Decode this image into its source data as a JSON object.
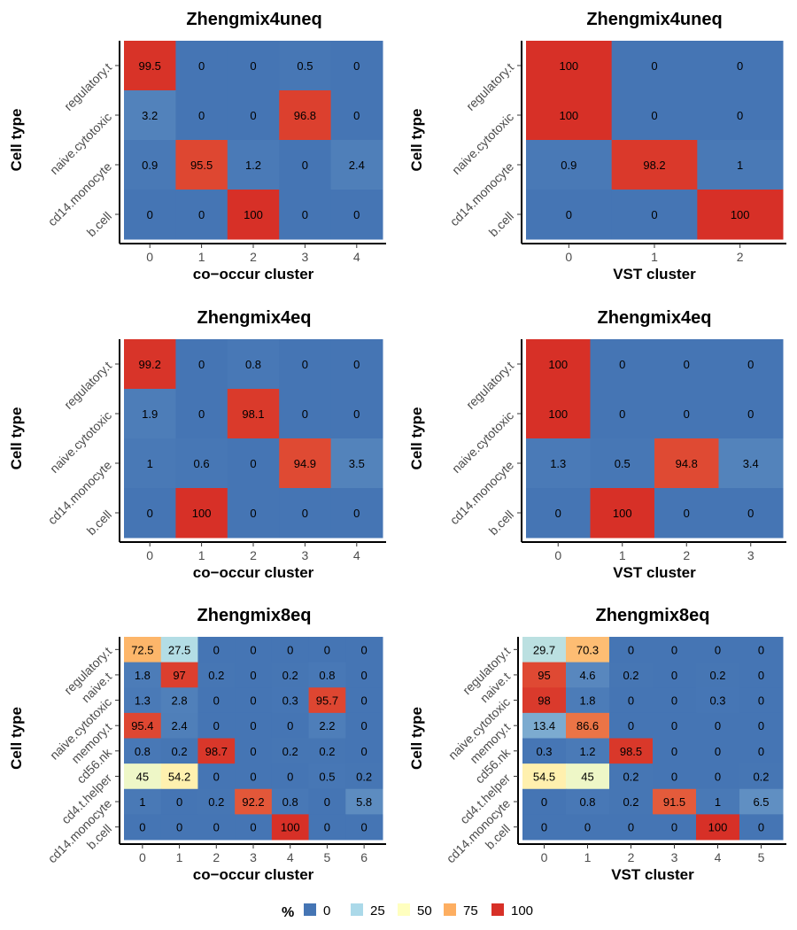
{
  "legend": {
    "title": "%",
    "items": [
      {
        "label": "0",
        "color": "#4575b4"
      },
      {
        "label": "25",
        "color": "#abd9e9"
      },
      {
        "label": "50",
        "color": "#ffffbf"
      },
      {
        "label": "75",
        "color": "#fdae61"
      },
      {
        "label": "100",
        "color": "#d73027"
      }
    ]
  },
  "chart_data": [
    {
      "type": "heatmap",
      "title": "Zhengmix4uneq",
      "xlabel": "co−occur cluster",
      "ylabel": "Cell type",
      "x": [
        "0",
        "1",
        "2",
        "3",
        "4"
      ],
      "y": [
        "regulatory.t",
        "naive.cytotoxic",
        "cd14.monocyte",
        "b.cell"
      ],
      "values": [
        [
          99.5,
          0,
          0,
          0.5,
          0
        ],
        [
          3.2,
          0,
          0,
          96.8,
          0
        ],
        [
          0.9,
          95.5,
          1.2,
          0,
          2.4
        ],
        [
          0,
          0,
          100,
          0,
          0
        ]
      ]
    },
    {
      "type": "heatmap",
      "title": "Zhengmix4uneq",
      "xlabel": "VST cluster",
      "ylabel": "Cell type",
      "x": [
        "0",
        "1",
        "2"
      ],
      "y": [
        "regulatory.t",
        "naive.cytotoxic",
        "cd14.monocyte",
        "b.cell"
      ],
      "values": [
        [
          100,
          0,
          0
        ],
        [
          100,
          0,
          0
        ],
        [
          0.9,
          98.2,
          1
        ],
        [
          0,
          0,
          100
        ]
      ]
    },
    {
      "type": "heatmap",
      "title": "Zhengmix4eq",
      "xlabel": "co−occur cluster",
      "ylabel": "Cell type",
      "x": [
        "0",
        "1",
        "2",
        "3",
        "4"
      ],
      "y": [
        "regulatory.t",
        "naive.cytotoxic",
        "cd14.monocyte",
        "b.cell"
      ],
      "values": [
        [
          99.2,
          0,
          0.8,
          0,
          0
        ],
        [
          1.9,
          0,
          98.1,
          0,
          0
        ],
        [
          1,
          0.6,
          0,
          94.9,
          3.5
        ],
        [
          0,
          100,
          0,
          0,
          0
        ]
      ]
    },
    {
      "type": "heatmap",
      "title": "Zhengmix4eq",
      "xlabel": "VST cluster",
      "ylabel": "Cell type",
      "x": [
        "0",
        "1",
        "2",
        "3"
      ],
      "y": [
        "regulatory.t",
        "naive.cytotoxic",
        "cd14.monocyte",
        "b.cell"
      ],
      "values": [
        [
          100,
          0,
          0,
          0
        ],
        [
          100,
          0,
          0,
          0
        ],
        [
          1.3,
          0.5,
          94.8,
          3.4
        ],
        [
          0,
          100,
          0,
          0
        ]
      ]
    },
    {
      "type": "heatmap",
      "title": "Zhengmix8eq",
      "xlabel": "co−occur cluster",
      "ylabel": "Cell type",
      "x": [
        "0",
        "1",
        "2",
        "3",
        "4",
        "5",
        "6"
      ],
      "y": [
        "regulatory.t",
        "naive.t",
        "naive.cytotoxic",
        "memory.t",
        "cd56.nk",
        "cd4.t.helper",
        "cd14.monocyte",
        "b.cell"
      ],
      "values": [
        [
          72.5,
          27.5,
          0,
          0,
          0,
          0,
          0
        ],
        [
          1.8,
          97,
          0.2,
          0,
          0.2,
          0.8,
          0
        ],
        [
          1.3,
          2.8,
          0,
          0,
          0.3,
          95.7,
          0
        ],
        [
          95.4,
          2.4,
          0,
          0,
          0,
          2.2,
          0
        ],
        [
          0.8,
          0.2,
          98.7,
          0,
          0.2,
          0.2,
          0
        ],
        [
          45,
          54.2,
          0,
          0,
          0,
          0.5,
          0.2
        ],
        [
          1,
          0,
          0.2,
          92.2,
          0.8,
          0,
          5.8
        ],
        [
          0,
          0,
          0,
          0,
          100,
          0,
          0
        ]
      ]
    },
    {
      "type": "heatmap",
      "title": "Zhengmix8eq",
      "xlabel": "VST cluster",
      "ylabel": "Cell type",
      "x": [
        "0",
        "1",
        "2",
        "3",
        "4",
        "5"
      ],
      "y": [
        "regulatory.t",
        "naive.t",
        "naive.cytotoxic",
        "memory.t",
        "cd56.nk",
        "cd4.t.helper",
        "cd14.monocyte",
        "b.cell"
      ],
      "values": [
        [
          29.7,
          70.3,
          0,
          0,
          0,
          0
        ],
        [
          95,
          4.6,
          0.2,
          0,
          0.2,
          0
        ],
        [
          98,
          1.8,
          0,
          0,
          0.3,
          0
        ],
        [
          13.4,
          86.6,
          0,
          0,
          0,
          0
        ],
        [
          0.3,
          1.2,
          98.5,
          0,
          0,
          0
        ],
        [
          54.5,
          45,
          0.2,
          0,
          0,
          0.2
        ],
        [
          0,
          0.8,
          0.2,
          91.5,
          1,
          6.5
        ],
        [
          0,
          0,
          0,
          0,
          100,
          0
        ]
      ]
    }
  ]
}
